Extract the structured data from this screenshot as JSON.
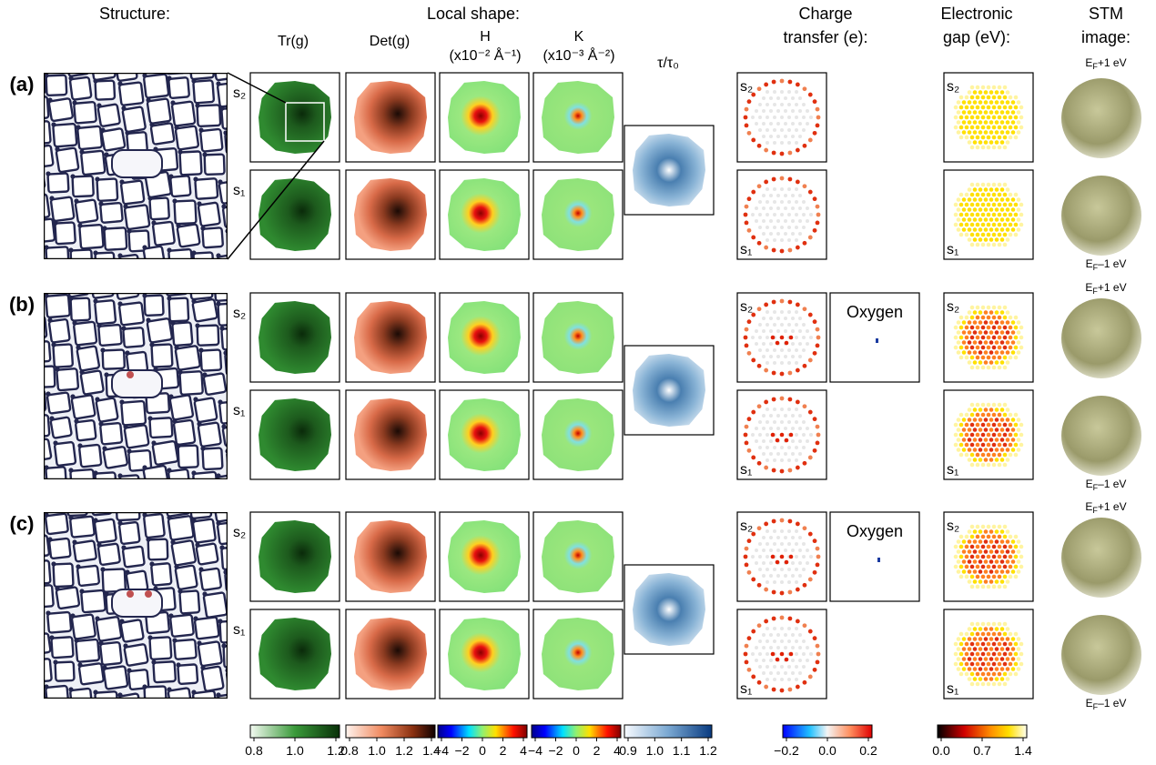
{
  "header": {
    "structure": "Structure:",
    "local_shape": "Local shape:",
    "charge_transfer": [
      "Charge",
      "transfer (e):"
    ],
    "electronic_gap": [
      "Electronic",
      "gap (eV):"
    ],
    "stm_image": [
      "STM",
      "image:"
    ]
  },
  "columns": {
    "tr": "Tr(g)",
    "det": "Det(g)",
    "h": "H",
    "h_unit": "(x10⁻² Å⁻¹)",
    "k": "K",
    "k_unit": "(x10⁻³ Å⁻²)",
    "tau": "τ/τ₀"
  },
  "rows": [
    {
      "label": "(a)"
    },
    {
      "label": "(b)",
      "oxygen": "Oxygen"
    },
    {
      "label": "(c)",
      "oxygen": "Oxygen"
    }
  ],
  "surface_labels": {
    "s2": "s₂",
    "s1": "s₁"
  },
  "stm_labels": {
    "base": "E",
    "sub": "F",
    "plus": "+1 eV",
    "minus": "–1 eV"
  },
  "colorbars": [
    {
      "ticks": [
        "0.8",
        "1.0",
        "1.2"
      ]
    },
    {
      "ticks": [
        "0.8",
        "1.0",
        "1.2",
        "1.4"
      ]
    },
    {
      "ticks": [
        "−4",
        "−2",
        "0",
        "2",
        "4"
      ]
    },
    {
      "ticks": [
        "−4",
        "−2",
        "0",
        "2",
        "4"
      ]
    },
    {
      "ticks": [
        "0.9",
        "1.0",
        "1.1",
        "1.2"
      ]
    },
    {
      "ticks": [
        "−0.2",
        "0.0",
        "0.2"
      ]
    },
    {
      "ticks": [
        "0.0",
        "0.7",
        "1.4"
      ]
    }
  ]
}
